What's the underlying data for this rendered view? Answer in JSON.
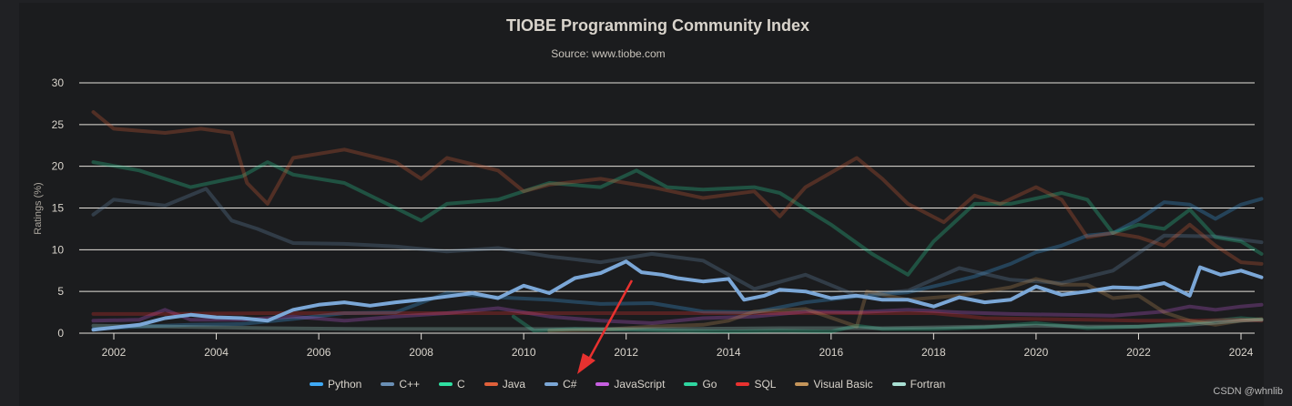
{
  "header": {
    "title": "TIOBE Programming Community Index",
    "subtitle": "Source: www.tiobe.com"
  },
  "watermark": "CSDN @whnlib",
  "annotation": {
    "type": "arrow",
    "color": "#e8312f",
    "points_to": "C#"
  },
  "chart_data": {
    "type": "line",
    "title": "TIOBE Programming Community Index",
    "subtitle": "Source: www.tiobe.com",
    "xlabel": "",
    "ylabel": "Ratings (%)",
    "xlim": [
      2001.5,
      2024.5
    ],
    "ylim": [
      0,
      30
    ],
    "x_ticks": [
      "2002",
      "2004",
      "2006",
      "2008",
      "2010",
      "2012",
      "2014",
      "2016",
      "2018",
      "2020",
      "2022",
      "2024"
    ],
    "y_ticks": [
      "0",
      "5",
      "10",
      "15",
      "20",
      "25",
      "30"
    ],
    "grid": true,
    "legend_position": "bottom-center",
    "highlighted_series": "C#",
    "series": [
      {
        "name": "Python",
        "color": "#3fa9f5",
        "x": [
          2001.6,
          2002.5,
          2003.5,
          2004.5,
          2005.5,
          2006.5,
          2007.5,
          2008.5,
          2009.5,
          2010.5,
          2011.5,
          2012.5,
          2013.5,
          2014.5,
          2015.5,
          2016.5,
          2017.5,
          2018.2,
          2018.8,
          2019.5,
          2020.0,
          2020.5,
          2021.0,
          2021.5,
          2022.0,
          2022.5,
          2023.0,
          2023.5,
          2024.0,
          2024.4
        ],
        "y": [
          0.5,
          0.8,
          1.0,
          1.1,
          1.7,
          2.4,
          2.5,
          4.8,
          4.3,
          4.0,
          3.5,
          3.6,
          2.6,
          2.5,
          3.7,
          4.4,
          4.9,
          5.9,
          6.8,
          8.3,
          9.7,
          10.5,
          11.7,
          12.0,
          13.6,
          15.7,
          15.4,
          13.7,
          15.4,
          16.1
        ]
      },
      {
        "name": "C++",
        "color": "#6a8fb5",
        "x": [
          2001.6,
          2002.0,
          2003.0,
          2003.8,
          2004.3,
          2004.8,
          2005.5,
          2006.5,
          2007.5,
          2008.5,
          2009.5,
          2010.5,
          2011.5,
          2012.5,
          2013.5,
          2014.5,
          2015.5,
          2016.5,
          2017.5,
          2018.5,
          2019.5,
          2020.5,
          2021.5,
          2022.5,
          2023.5,
          2024.4
        ],
        "y": [
          14.2,
          16.0,
          15.3,
          17.3,
          13.5,
          12.5,
          10.8,
          10.7,
          10.4,
          9.8,
          10.2,
          9.2,
          8.5,
          9.5,
          8.7,
          5.3,
          7.0,
          4.5,
          5.1,
          7.8,
          6.4,
          6.0,
          7.5,
          11.7,
          11.6,
          10.9
        ]
      },
      {
        "name": "C",
        "color": "#2fe0a2",
        "x": [
          2001.6,
          2002.5,
          2003.5,
          2004.5,
          2005.0,
          2005.5,
          2006.5,
          2007.5,
          2008.0,
          2008.5,
          2009.5,
          2010.5,
          2011.5,
          2012.2,
          2012.8,
          2013.5,
          2014.5,
          2015.0,
          2016.0,
          2016.8,
          2017.5,
          2018.0,
          2018.8,
          2019.5,
          2020.5,
          2021.0,
          2021.5,
          2022.0,
          2022.5,
          2023.0,
          2023.5,
          2024.0,
          2024.4
        ],
        "y": [
          20.5,
          19.5,
          17.5,
          18.8,
          20.5,
          19.0,
          18.0,
          15.0,
          13.5,
          15.5,
          16.0,
          18.0,
          17.5,
          19.5,
          17.5,
          17.2,
          17.5,
          16.8,
          13.0,
          9.5,
          7.0,
          11.0,
          15.5,
          15.5,
          16.8,
          16.0,
          12.0,
          13.0,
          12.5,
          14.8,
          11.5,
          11.0,
          9.5
        ]
      },
      {
        "name": "Java",
        "color": "#e0603a",
        "x": [
          2001.6,
          2002.0,
          2003.0,
          2003.7,
          2004.3,
          2004.6,
          2005.0,
          2005.5,
          2006.5,
          2007.5,
          2008.0,
          2008.5,
          2009.5,
          2010.0,
          2010.5,
          2011.5,
          2012.5,
          2013.5,
          2014.5,
          2015.0,
          2015.5,
          2016.5,
          2017.0,
          2017.5,
          2018.2,
          2018.8,
          2019.3,
          2020.0,
          2020.5,
          2021.0,
          2021.5,
          2022.0,
          2022.5,
          2023.0,
          2023.5,
          2024.0,
          2024.4
        ],
        "y": [
          26.5,
          24.5,
          24.0,
          24.5,
          24.0,
          18.0,
          15.5,
          21.0,
          22.0,
          20.5,
          18.5,
          21.0,
          19.5,
          17.0,
          17.8,
          18.5,
          17.5,
          16.2,
          17.0,
          14.0,
          17.5,
          21.0,
          18.5,
          15.5,
          13.3,
          16.5,
          15.5,
          17.5,
          16.0,
          11.5,
          12.0,
          11.5,
          10.5,
          13.0,
          10.5,
          8.5,
          8.3
        ]
      },
      {
        "name": "C#",
        "color": "#7ba7d7",
        "x": [
          2001.6,
          2002.5,
          2003.0,
          2003.5,
          2004.0,
          2004.5,
          2005.0,
          2005.5,
          2006.0,
          2006.5,
          2007.0,
          2007.5,
          2008.0,
          2008.5,
          2009.0,
          2009.5,
          2010.0,
          2010.5,
          2011.0,
          2011.5,
          2012.0,
          2012.3,
          2012.7,
          2013.0,
          2013.5,
          2014.0,
          2014.3,
          2014.7,
          2015.0,
          2015.5,
          2016.0,
          2016.5,
          2017.0,
          2017.5,
          2018.0,
          2018.5,
          2019.0,
          2019.5,
          2020.0,
          2020.5,
          2021.0,
          2021.5,
          2022.0,
          2022.5,
          2023.0,
          2023.2,
          2023.6,
          2024.0,
          2024.4
        ],
        "y": [
          0.4,
          1.0,
          1.8,
          2.2,
          1.9,
          1.8,
          1.5,
          2.8,
          3.4,
          3.7,
          3.3,
          3.7,
          4.0,
          4.4,
          4.8,
          4.2,
          5.7,
          4.8,
          6.6,
          7.2,
          8.6,
          7.3,
          7.0,
          6.6,
          6.2,
          6.5,
          4.0,
          4.5,
          5.2,
          5.0,
          4.2,
          4.5,
          4.0,
          4.0,
          3.2,
          4.3,
          3.7,
          4.0,
          5.6,
          4.6,
          5.0,
          5.5,
          5.4,
          6.0,
          4.5,
          7.9,
          7.0,
          7.5,
          6.7
        ]
      },
      {
        "name": "JavaScript",
        "color": "#c65fe0",
        "x": [
          2001.6,
          2002.5,
          2003.0,
          2003.5,
          2004.5,
          2005.5,
          2006.5,
          2007.5,
          2008.5,
          2009.5,
          2010.5,
          2011.5,
          2012.5,
          2013.5,
          2014.5,
          2015.5,
          2016.5,
          2017.5,
          2018.5,
          2019.5,
          2020.5,
          2021.5,
          2022.5,
          2023.0,
          2023.5,
          2024.0,
          2024.4
        ],
        "y": [
          1.5,
          1.6,
          2.8,
          1.6,
          1.6,
          2.0,
          1.5,
          2.0,
          2.4,
          3.0,
          2.0,
          1.5,
          1.2,
          1.8,
          2.0,
          2.6,
          2.5,
          2.8,
          2.5,
          2.3,
          2.2,
          2.1,
          2.6,
          3.2,
          2.8,
          3.2,
          3.4
        ]
      },
      {
        "name": "Go",
        "color": "#2fd6a0",
        "x": [
          2009.8,
          2010.2,
          2011.0,
          2012.0,
          2013.0,
          2014.0,
          2015.0,
          2016.0,
          2016.5,
          2017.0,
          2018.0,
          2019.0,
          2020.0,
          2021.0,
          2022.0,
          2023.0,
          2024.0,
          2024.4
        ],
        "y": [
          2.0,
          0.3,
          0.5,
          0.4,
          0.3,
          0.2,
          0.3,
          0.2,
          0.9,
          0.5,
          0.5,
          0.7,
          1.2,
          0.6,
          0.8,
          1.2,
          1.8,
          1.6
        ]
      },
      {
        "name": "SQL",
        "color": "#e8312f",
        "x": [
          2001.6,
          2003.0,
          2005.0,
          2008.0,
          2010.0,
          2012.0,
          2014.0,
          2016.0,
          2018.0,
          2019.0,
          2020.0,
          2021.0,
          2022.0,
          2023.0,
          2024.0,
          2024.4
        ],
        "y": [
          2.3,
          2.3,
          2.4,
          2.4,
          2.4,
          2.4,
          2.4,
          2.4,
          2.4,
          1.8,
          1.7,
          1.6,
          1.5,
          1.5,
          1.6,
          1.5
        ]
      },
      {
        "name": "Visual Basic",
        "color": "#c4955a",
        "x": [
          2010.5,
          2011.5,
          2012.5,
          2013.5,
          2014.0,
          2014.5,
          2015.5,
          2016.5,
          2016.7,
          2017.5,
          2018.5,
          2019.5,
          2020.0,
          2020.5,
          2021.0,
          2021.5,
          2022.0,
          2022.5,
          2023.0,
          2023.5,
          2024.0,
          2024.4
        ],
        "y": [
          0.3,
          0.4,
          0.8,
          1.0,
          1.5,
          2.6,
          2.9,
          0.8,
          5.0,
          4.0,
          4.5,
          5.5,
          6.5,
          5.8,
          5.8,
          4.2,
          4.5,
          2.5,
          1.5,
          1.0,
          1.5,
          1.7
        ]
      },
      {
        "name": "Fortran",
        "color": "#a8dfd3",
        "x": [
          2001.6,
          2003.0,
          2005.0,
          2007.0,
          2009.0,
          2011.0,
          2013.0,
          2015.0,
          2017.0,
          2019.0,
          2020.0,
          2021.0,
          2022.0,
          2023.0,
          2024.0,
          2024.4
        ],
        "y": [
          0.9,
          0.8,
          0.6,
          0.5,
          0.5,
          0.5,
          0.5,
          0.6,
          0.6,
          0.8,
          0.9,
          0.8,
          0.8,
          1.0,
          1.5,
          1.6
        ]
      }
    ]
  }
}
